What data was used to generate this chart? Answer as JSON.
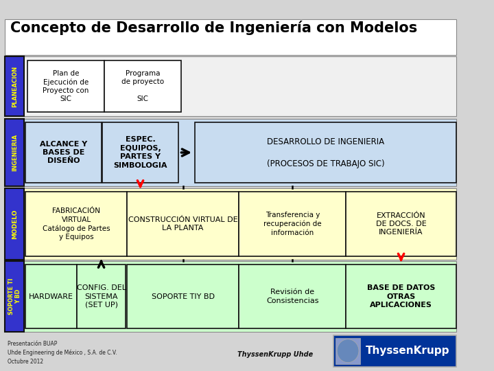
{
  "title": "Concepto de Desarrollo de Ingeniería con Modelos",
  "title_fontsize": 15,
  "bg_color": "#d4d4d4",
  "white": "#ffffff",
  "blue_label_bg": "#3333cc",
  "blue_label_text": "#ffff00",
  "light_blue": "#c8dcf0",
  "light_yellow": "#ffffcc",
  "light_green": "#ccffcc",
  "dark_outline": "#111111",
  "footer_left": "Presentación BUAP\nUhde Engineering de México , S.A. de C.V.\nOctubre 2012",
  "footer_center": "ThyssenKrupp Uhde",
  "logo_text": "ThyssenKrupp",
  "logo_bg": "#003399"
}
